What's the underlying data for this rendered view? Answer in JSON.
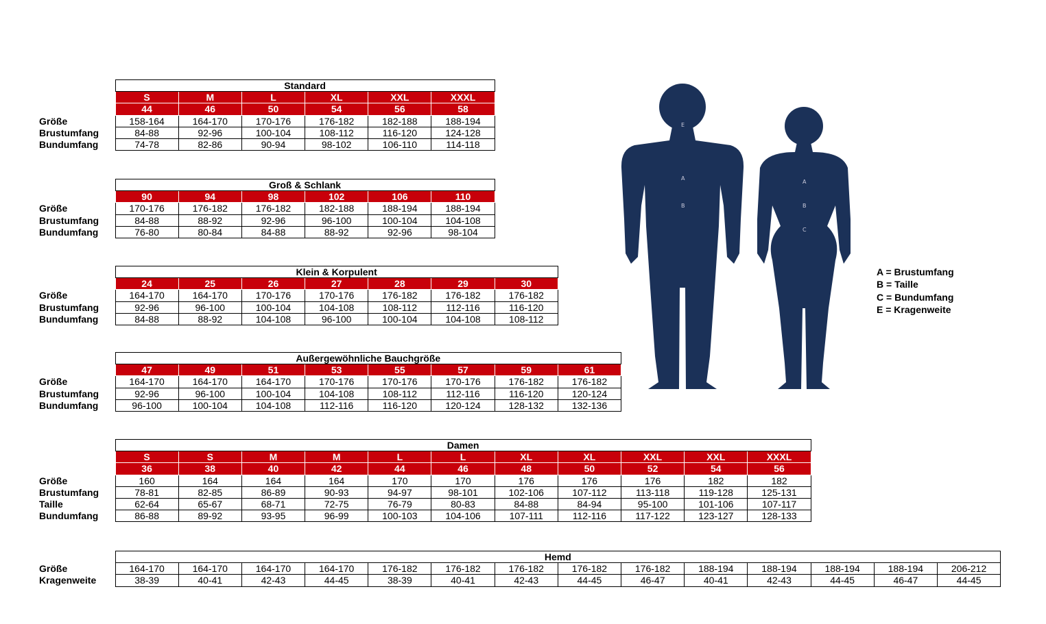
{
  "tables": [
    {
      "title": "Standard",
      "header_rows": [
        [
          "S",
          "M",
          "L",
          "XL",
          "XXL",
          "XXXL"
        ],
        [
          "44",
          "46",
          "50",
          "54",
          "56",
          "58"
        ]
      ],
      "rows": [
        {
          "label": "Größe",
          "cells": [
            "158-164",
            "164-170",
            "170-176",
            "176-182",
            "182-188",
            "188-194"
          ]
        },
        {
          "label": "Brustumfang",
          "cells": [
            "84-88",
            "92-96",
            "100-104",
            "108-112",
            "116-120",
            "124-128"
          ]
        },
        {
          "label": "Bundumfang",
          "cells": [
            "74-78",
            "82-86",
            "90-94",
            "98-102",
            "106-110",
            "114-118"
          ]
        }
      ]
    },
    {
      "title": "Groß & Schlank",
      "header_rows": [
        [
          "90",
          "94",
          "98",
          "102",
          "106",
          "110"
        ]
      ],
      "rows": [
        {
          "label": "Größe",
          "cells": [
            "170-176",
            "176-182",
            "176-182",
            "182-188",
            "188-194",
            "188-194"
          ]
        },
        {
          "label": "Brustumfang",
          "cells": [
            "84-88",
            "88-92",
            "92-96",
            "96-100",
            "100-104",
            "104-108"
          ]
        },
        {
          "label": "Bundumfang",
          "cells": [
            "76-80",
            "80-84",
            "84-88",
            "88-92",
            "92-96",
            "98-104"
          ]
        }
      ]
    },
    {
      "title": "Klein & Korpulent",
      "header_rows": [
        [
          "24",
          "25",
          "26",
          "27",
          "28",
          "29",
          "30"
        ]
      ],
      "rows": [
        {
          "label": "Größe",
          "cells": [
            "164-170",
            "164-170",
            "170-176",
            "170-176",
            "176-182",
            "176-182",
            "176-182"
          ]
        },
        {
          "label": "Brustumfang",
          "cells": [
            "92-96",
            "96-100",
            "100-104",
            "104-108",
            "108-112",
            "112-116",
            "116-120"
          ]
        },
        {
          "label": "Bundumfang",
          "cells": [
            "84-88",
            "88-92",
            "104-108",
            "96-100",
            "100-104",
            "104-108",
            "108-112"
          ]
        }
      ]
    },
    {
      "title": "Außergewöhnliche Bauchgröße",
      "header_rows": [
        [
          "47",
          "49",
          "51",
          "53",
          "55",
          "57",
          "59",
          "61"
        ]
      ],
      "rows": [
        {
          "label": "Größe",
          "cells": [
            "164-170",
            "164-170",
            "164-170",
            "170-176",
            "170-176",
            "170-176",
            "176-182",
            "176-182"
          ]
        },
        {
          "label": "Brustumfang",
          "cells": [
            "92-96",
            "96-100",
            "100-104",
            "104-108",
            "108-112",
            "112-116",
            "116-120",
            "120-124"
          ]
        },
        {
          "label": "Bundumfang",
          "cells": [
            "96-100",
            "100-104",
            "104-108",
            "112-116",
            "116-120",
            "120-124",
            "128-132",
            "132-136"
          ]
        }
      ]
    },
    {
      "title": "Damen",
      "header_rows": [
        [
          "S",
          "S",
          "M",
          "M",
          "L",
          "L",
          "XL",
          "XL",
          "XXL",
          "XXL",
          "XXXL"
        ],
        [
          "36",
          "38",
          "40",
          "42",
          "44",
          "46",
          "48",
          "50",
          "52",
          "54",
          "56"
        ]
      ],
      "rows": [
        {
          "label": "Größe",
          "cells": [
            "160",
            "164",
            "164",
            "164",
            "170",
            "170",
            "176",
            "176",
            "176",
            "182",
            "182"
          ]
        },
        {
          "label": "Brustumfang",
          "cells": [
            "78-81",
            "82-85",
            "86-89",
            "90-93",
            "94-97",
            "98-101",
            "102-106",
            "107-112",
            "113-118",
            "119-128",
            "125-131"
          ]
        },
        {
          "label": "Taille",
          "cells": [
            "62-64",
            "65-67",
            "68-71",
            "72-75",
            "76-79",
            "80-83",
            "84-88",
            "84-94",
            "95-100",
            "101-106",
            "107-117"
          ]
        },
        {
          "label": "Bundumfang",
          "cells": [
            "86-88",
            "89-92",
            "93-95",
            "96-99",
            "100-103",
            "104-106",
            "107-111",
            "112-116",
            "117-122",
            "123-127",
            "128-133"
          ]
        }
      ]
    },
    {
      "title": "Hemd",
      "header_rows": [],
      "rows": [
        {
          "label": "Größe",
          "cells": [
            "164-170",
            "164-170",
            "164-170",
            "164-170",
            "176-182",
            "176-182",
            "176-182",
            "176-182",
            "176-182",
            "188-194",
            "188-194",
            "188-194",
            "188-194",
            "206-212"
          ]
        },
        {
          "label": "Kragenweite",
          "cells": [
            "38-39",
            "40-41",
            "42-43",
            "44-45",
            "38-39",
            "40-41",
            "42-43",
            "44-45",
            "46-47",
            "40-41",
            "42-43",
            "44-45",
            "46-47",
            "44-45"
          ]
        }
      ]
    }
  ],
  "figure": {
    "man_marks": [
      "E",
      "A",
      "B"
    ],
    "woman_marks": [
      "A",
      "B",
      "C"
    ],
    "legend": [
      "A = Brustumfang",
      "B = Taille",
      "C = Bundumfang",
      "E = Kragenweite"
    ]
  }
}
